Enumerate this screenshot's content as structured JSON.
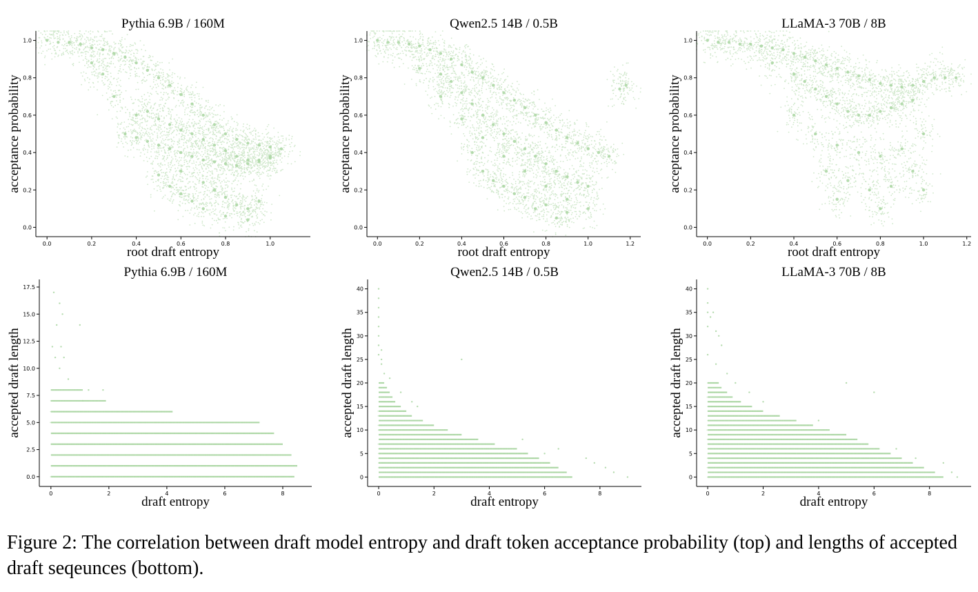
{
  "caption": "Figure 2: The correlation between draft model entropy and draft token acceptance probability (top) and lengths of accepted draft seqeunces (bottom).",
  "colors": {
    "points": "#a8d5a0",
    "axis": "#000000",
    "background": "#ffffff"
  },
  "chart_data": [
    {
      "type": "scatter",
      "title": "Pythia 6.9B / 160M",
      "xlabel": "root draft entropy",
      "ylabel": "acceptance probability",
      "xlim": [
        -0.05,
        1.18
      ],
      "ylim": [
        -0.05,
        1.05
      ],
      "xticks": [
        0.0,
        0.2,
        0.4,
        0.6,
        0.8,
        1.0
      ],
      "yticks": [
        0.0,
        0.2,
        0.4,
        0.6,
        0.8,
        1.0
      ],
      "xtick_labels": [
        "0.0",
        "0.2",
        "0.4",
        "0.6",
        "0.8",
        "1.0"
      ],
      "ytick_labels": [
        "0.0",
        "0.2",
        "0.4",
        "0.6",
        "0.8",
        "1.0"
      ],
      "grid": false,
      "series": [
        {
          "x": [
            0.0,
            0.05,
            0.1,
            0.15,
            0.2,
            0.25,
            0.3,
            0.35,
            0.4,
            0.45,
            0.5,
            0.55,
            0.6,
            0.65,
            0.7,
            0.75,
            0.8,
            0.85,
            0.9,
            0.95,
            1.0,
            1.05,
            0.35,
            0.4,
            0.45,
            0.5,
            0.55,
            0.6,
            0.65,
            0.7,
            0.75,
            0.8,
            0.85,
            0.9,
            0.95,
            1.0,
            0.45,
            0.5,
            0.55,
            0.6,
            0.65,
            0.7,
            0.75,
            0.8,
            0.85,
            0.9,
            0.95,
            1.0,
            0.6,
            0.7,
            0.75,
            0.8,
            0.85,
            0.9,
            0.95,
            0.2,
            0.25,
            0.3,
            0.4,
            0.5,
            0.55,
            0.6,
            0.65,
            0.7,
            0.8,
            0.9
          ],
          "y": [
            1.0,
            0.99,
            0.99,
            0.98,
            0.96,
            0.95,
            0.93,
            0.91,
            0.88,
            0.84,
            0.8,
            0.76,
            0.71,
            0.66,
            0.6,
            0.55,
            0.5,
            0.47,
            0.45,
            0.44,
            0.43,
            0.42,
            0.5,
            0.48,
            0.46,
            0.44,
            0.42,
            0.4,
            0.38,
            0.36,
            0.35,
            0.34,
            0.33,
            0.34,
            0.36,
            0.38,
            0.62,
            0.58,
            0.55,
            0.52,
            0.5,
            0.47,
            0.44,
            0.41,
            0.38,
            0.36,
            0.35,
            0.37,
            0.3,
            0.24,
            0.2,
            0.16,
            0.12,
            0.1,
            0.14,
            0.88,
            0.82,
            0.7,
            0.6,
            0.28,
            0.22,
            0.18,
            0.14,
            0.1,
            0.06,
            0.04
          ]
        }
      ]
    },
    {
      "type": "scatter",
      "title": "Qwen2.5 14B / 0.5B",
      "xlabel": "root draft entropy",
      "ylabel": "acceptance probability",
      "xlim": [
        -0.05,
        1.25
      ],
      "ylim": [
        -0.05,
        1.05
      ],
      "xticks": [
        0.0,
        0.2,
        0.4,
        0.6,
        0.8,
        1.0,
        1.2
      ],
      "yticks": [
        0.0,
        0.2,
        0.4,
        0.6,
        0.8,
        1.0
      ],
      "xtick_labels": [
        "0.0",
        "0.2",
        "0.4",
        "0.6",
        "0.8",
        "1.0",
        "1.2"
      ],
      "ytick_labels": [
        "0.0",
        "0.2",
        "0.4",
        "0.6",
        "0.8",
        "1.0"
      ],
      "grid": false,
      "series": [
        {
          "x": [
            0.0,
            0.05,
            0.1,
            0.15,
            0.2,
            0.25,
            0.3,
            0.35,
            0.4,
            0.45,
            0.5,
            0.55,
            0.6,
            0.65,
            0.7,
            0.75,
            0.8,
            0.85,
            0.9,
            0.95,
            1.0,
            1.05,
            1.1,
            1.15,
            1.18,
            0.3,
            0.35,
            0.4,
            0.45,
            0.5,
            0.55,
            0.6,
            0.65,
            0.7,
            0.75,
            0.8,
            0.85,
            0.9,
            0.95,
            1.0,
            0.4,
            0.5,
            0.6,
            0.7,
            0.8,
            0.9,
            1.0,
            0.5,
            0.6,
            0.7,
            0.8,
            0.9,
            0.2,
            0.3,
            0.45,
            0.55,
            0.65,
            0.75,
            0.85
          ],
          "y": [
            1.0,
            0.99,
            0.99,
            0.98,
            0.97,
            0.95,
            0.93,
            0.9,
            0.87,
            0.83,
            0.8,
            0.76,
            0.72,
            0.68,
            0.64,
            0.6,
            0.56,
            0.52,
            0.48,
            0.45,
            0.42,
            0.4,
            0.38,
            0.74,
            0.76,
            0.82,
            0.78,
            0.72,
            0.66,
            0.6,
            0.55,
            0.5,
            0.46,
            0.42,
            0.38,
            0.34,
            0.3,
            0.27,
            0.24,
            0.22,
            0.58,
            0.48,
            0.38,
            0.3,
            0.22,
            0.15,
            0.1,
            0.3,
            0.22,
            0.16,
            0.12,
            0.08,
            0.85,
            0.7,
            0.4,
            0.25,
            0.18,
            0.1,
            0.05
          ]
        }
      ]
    },
    {
      "type": "scatter",
      "title": "LLaMA-3 70B / 8B",
      "xlabel": "root draft entropy",
      "ylabel": "acceptance probability",
      "xlim": [
        -0.05,
        1.22
      ],
      "ylim": [
        -0.05,
        1.05
      ],
      "xticks": [
        0.0,
        0.2,
        0.4,
        0.6,
        0.8,
        1.0,
        1.2
      ],
      "yticks": [
        0.0,
        0.2,
        0.4,
        0.6,
        0.8,
        1.0
      ],
      "xtick_labels": [
        "0.0",
        "0.2",
        "0.4",
        "0.6",
        "0.8",
        "1.0",
        "1.2"
      ],
      "ytick_labels": [
        "0.0",
        "0.2",
        "0.4",
        "0.6",
        "0.8",
        "1.0"
      ],
      "grid": false,
      "series": [
        {
          "x": [
            0.0,
            0.05,
            0.1,
            0.15,
            0.2,
            0.25,
            0.3,
            0.35,
            0.4,
            0.45,
            0.5,
            0.55,
            0.6,
            0.65,
            0.7,
            0.75,
            0.8,
            0.85,
            0.9,
            0.95,
            1.0,
            1.05,
            1.1,
            1.15,
            0.4,
            0.45,
            0.5,
            0.55,
            0.6,
            0.65,
            0.7,
            0.75,
            0.8,
            0.85,
            0.9,
            0.95,
            0.5,
            0.6,
            0.7,
            0.8,
            0.9,
            1.0,
            0.55,
            0.65,
            0.75,
            0.85,
            0.95,
            0.3,
            0.4,
            0.6,
            0.8,
            1.0
          ],
          "y": [
            1.0,
            0.99,
            0.99,
            0.98,
            0.98,
            0.97,
            0.96,
            0.95,
            0.93,
            0.91,
            0.89,
            0.87,
            0.85,
            0.83,
            0.81,
            0.79,
            0.77,
            0.76,
            0.75,
            0.76,
            0.78,
            0.8,
            0.8,
            0.8,
            0.82,
            0.78,
            0.74,
            0.7,
            0.66,
            0.62,
            0.6,
            0.6,
            0.62,
            0.64,
            0.66,
            0.68,
            0.5,
            0.44,
            0.4,
            0.38,
            0.42,
            0.5,
            0.3,
            0.25,
            0.2,
            0.22,
            0.3,
            0.88,
            0.6,
            0.15,
            0.1,
            0.2
          ]
        }
      ]
    },
    {
      "type": "scatter",
      "title": "Pythia 6.9B / 160M",
      "xlabel": "draft entropy",
      "ylabel": "accepted draft length",
      "xlim": [
        -0.4,
        9.0
      ],
      "ylim": [
        -0.9,
        18.2
      ],
      "xticks": [
        0,
        2,
        4,
        6,
        8
      ],
      "yticks": [
        0.0,
        2.5,
        5.0,
        7.5,
        10.0,
        12.5,
        15.0,
        17.5
      ],
      "xtick_labels": [
        "0",
        "2",
        "4",
        "6",
        "8"
      ],
      "ytick_labels": [
        "0.0",
        "2.5",
        "5.0",
        "7.5",
        "10.0",
        "12.5",
        "15.0",
        "17.5"
      ],
      "grid": false,
      "bands": [
        {
          "y": 0,
          "x_start": 0.0,
          "x_end": 8.4
        },
        {
          "y": 1,
          "x_start": 0.0,
          "x_end": 8.5
        },
        {
          "y": 2,
          "x_start": 0.0,
          "x_end": 8.3
        },
        {
          "y": 3,
          "x_start": 0.0,
          "x_end": 8.0
        },
        {
          "y": 4,
          "x_start": 0.0,
          "x_end": 7.7
        },
        {
          "y": 5,
          "x_start": 0.0,
          "x_end": 7.2
        },
        {
          "y": 6,
          "x_start": 0.0,
          "x_end": 4.2
        },
        {
          "y": 7,
          "x_start": 0.0,
          "x_end": 1.9
        },
        {
          "y": 8,
          "x_start": 0.0,
          "x_end": 1.1
        }
      ],
      "series": [
        {
          "x": [
            0.1,
            0.3,
            0.4,
            0.2,
            0.05,
            0.35,
            0.45,
            0.6,
            0.15,
            0.3,
            1.0,
            1.3,
            1.8,
            1.1
          ],
          "y": [
            17,
            16,
            15,
            14,
            12,
            12,
            11,
            9,
            11,
            10,
            14,
            8,
            8,
            7
          ]
        }
      ]
    },
    {
      "type": "scatter",
      "title": "Qwen2.5 14B / 0.5B",
      "xlabel": "draft entropy",
      "ylabel": "accepted draft length",
      "xlim": [
        -0.4,
        9.5
      ],
      "ylim": [
        -2.0,
        42.0
      ],
      "xticks": [
        0,
        2,
        4,
        6,
        8
      ],
      "yticks": [
        0,
        5,
        10,
        15,
        20,
        25,
        30,
        35,
        40
      ],
      "xtick_labels": [
        "0",
        "2",
        "4",
        "6",
        "8"
      ],
      "ytick_labels": [
        "0",
        "5",
        "10",
        "15",
        "20",
        "25",
        "30",
        "35",
        "40"
      ],
      "grid": false,
      "bands": [
        {
          "y": 0,
          "x_start": 0.0,
          "x_end": 7.0
        },
        {
          "y": 1,
          "x_start": 0.0,
          "x_end": 6.8
        },
        {
          "y": 2,
          "x_start": 0.0,
          "x_end": 6.5
        },
        {
          "y": 3,
          "x_start": 0.0,
          "x_end": 6.2
        },
        {
          "y": 4,
          "x_start": 0.0,
          "x_end": 5.8
        },
        {
          "y": 5,
          "x_start": 0.0,
          "x_end": 5.4
        },
        {
          "y": 6,
          "x_start": 0.0,
          "x_end": 5.0
        },
        {
          "y": 7,
          "x_start": 0.0,
          "x_end": 4.2
        },
        {
          "y": 8,
          "x_start": 0.0,
          "x_end": 3.6
        },
        {
          "y": 9,
          "x_start": 0.0,
          "x_end": 3.0
        },
        {
          "y": 10,
          "x_start": 0.0,
          "x_end": 2.5
        },
        {
          "y": 11,
          "x_start": 0.0,
          "x_end": 2.0
        },
        {
          "y": 12,
          "x_start": 0.0,
          "x_end": 1.6
        },
        {
          "y": 13,
          "x_start": 0.0,
          "x_end": 1.2
        },
        {
          "y": 14,
          "x_start": 0.0,
          "x_end": 1.0
        },
        {
          "y": 15,
          "x_start": 0.0,
          "x_end": 0.8
        },
        {
          "y": 16,
          "x_start": 0.0,
          "x_end": 0.6
        },
        {
          "y": 17,
          "x_start": 0.0,
          "x_end": 0.5
        },
        {
          "y": 18,
          "x_start": 0.0,
          "x_end": 0.4
        },
        {
          "y": 19,
          "x_start": 0.0,
          "x_end": 0.3
        },
        {
          "y": 20,
          "x_start": 0.0,
          "x_end": 0.2
        }
      ],
      "series": [
        {
          "x": [
            0.0,
            0.0,
            0.0,
            0.0,
            0.0,
            0.0,
            0.0,
            0.1,
            0.0,
            0.1,
            0.2,
            0.1,
            3.0,
            0.4,
            0.8,
            1.2,
            1.4,
            5.2,
            6.0,
            7.5,
            8.5,
            9.0,
            8.2,
            7.8,
            6.5
          ],
          "y": [
            40,
            38,
            36,
            34,
            32,
            30,
            28,
            27,
            26,
            24,
            22,
            25,
            25,
            21,
            18,
            16,
            15,
            8,
            5,
            4,
            1,
            0,
            2,
            3,
            6
          ]
        }
      ]
    },
    {
      "type": "scatter",
      "title": "LLaMA-3 70B / 8B",
      "xlabel": "draft entropy",
      "ylabel": "accepted draft length",
      "xlim": [
        -0.4,
        9.5
      ],
      "ylim": [
        -2.0,
        42.0
      ],
      "xticks": [
        0,
        2,
        4,
        6,
        8
      ],
      "yticks": [
        0,
        5,
        10,
        15,
        20,
        25,
        30,
        35,
        40
      ],
      "xtick_labels": [
        "0",
        "2",
        "4",
        "6",
        "8"
      ],
      "ytick_labels": [
        "0",
        "5",
        "10",
        "15",
        "20",
        "25",
        "30",
        "35",
        "40"
      ],
      "grid": false,
      "bands": [
        {
          "y": 0,
          "x_start": 0.0,
          "x_end": 8.5
        },
        {
          "y": 1,
          "x_start": 0.0,
          "x_end": 8.2
        },
        {
          "y": 2,
          "x_start": 0.0,
          "x_end": 7.8
        },
        {
          "y": 3,
          "x_start": 0.0,
          "x_end": 7.4
        },
        {
          "y": 4,
          "x_start": 0.0,
          "x_end": 7.0
        },
        {
          "y": 5,
          "x_start": 0.0,
          "x_end": 6.6
        },
        {
          "y": 6,
          "x_start": 0.0,
          "x_end": 6.2
        },
        {
          "y": 7,
          "x_start": 0.0,
          "x_end": 5.8
        },
        {
          "y": 8,
          "x_start": 0.0,
          "x_end": 5.4
        },
        {
          "y": 9,
          "x_start": 0.0,
          "x_end": 5.0
        },
        {
          "y": 10,
          "x_start": 0.0,
          "x_end": 4.4
        },
        {
          "y": 11,
          "x_start": 0.0,
          "x_end": 3.8
        },
        {
          "y": 12,
          "x_start": 0.0,
          "x_end": 3.2
        },
        {
          "y": 13,
          "x_start": 0.0,
          "x_end": 2.6
        },
        {
          "y": 14,
          "x_start": 0.0,
          "x_end": 2.0
        },
        {
          "y": 15,
          "x_start": 0.0,
          "x_end": 1.6
        },
        {
          "y": 16,
          "x_start": 0.0,
          "x_end": 1.2
        },
        {
          "y": 17,
          "x_start": 0.0,
          "x_end": 0.9
        },
        {
          "y": 18,
          "x_start": 0.0,
          "x_end": 0.7
        },
        {
          "y": 19,
          "x_start": 0.0,
          "x_end": 0.5
        },
        {
          "y": 20,
          "x_start": 0.0,
          "x_end": 0.4
        }
      ],
      "series": [
        {
          "x": [
            0.0,
            0.0,
            0.0,
            0.1,
            0.0,
            0.2,
            0.3,
            0.4,
            0.5,
            0.0,
            0.3,
            0.7,
            1.0,
            1.5,
            2.0,
            4.0,
            5.0,
            6.0,
            8.8,
            9.0,
            8.5,
            7.5,
            6.8
          ],
          "y": [
            40,
            37,
            35,
            34,
            32,
            35,
            31,
            30,
            28,
            26,
            24,
            22,
            20,
            18,
            16,
            12,
            20,
            18,
            1,
            0,
            3,
            4,
            6
          ]
        }
      ]
    }
  ]
}
